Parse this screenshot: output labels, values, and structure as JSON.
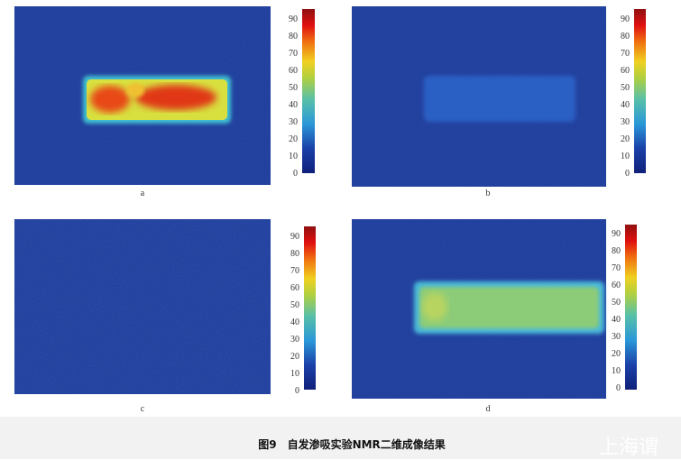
{
  "figure": {
    "caption_number": "图9",
    "caption_text": "自发渗吸实验NMR二维成像结果",
    "watermark": "上海谓",
    "colorbar": {
      "ticks": [
        "0",
        "10",
        "20",
        "30",
        "40",
        "50",
        "60",
        "70",
        "80",
        "90"
      ],
      "colormap": "jet",
      "range": [
        0,
        97
      ]
    },
    "panels": [
      {
        "label": "a",
        "signal": "high",
        "core_color": "#f0a020",
        "edge_color": "#d8e040"
      },
      {
        "label": "b",
        "signal": "faint",
        "core_color": "#2c5ec4",
        "edge_color": "#2a58bc"
      },
      {
        "label": "c",
        "signal": "none"
      },
      {
        "label": "d",
        "signal": "medium",
        "core_color": "#8ccc78",
        "edge_color": "#48b8d8"
      }
    ],
    "background_color": "#1c3a98"
  }
}
